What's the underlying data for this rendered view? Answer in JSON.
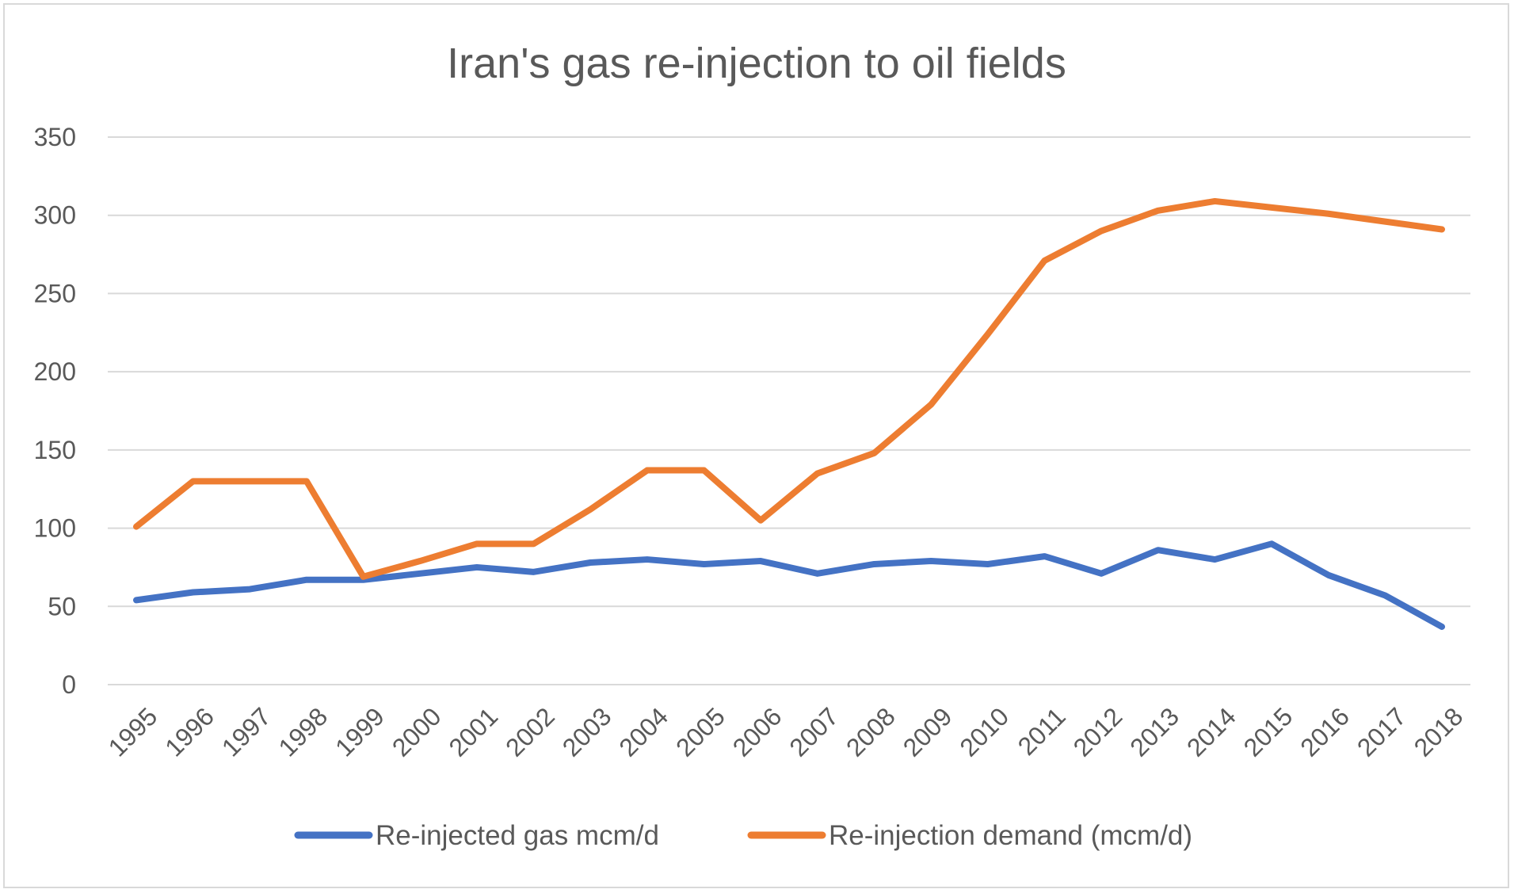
{
  "chart_data": {
    "type": "line",
    "title": "Iran's gas re-injection to oil fields",
    "xlabel": "",
    "ylabel": "",
    "categories": [
      "1995",
      "1996",
      "1997",
      "1998",
      "1999",
      "2000",
      "2001",
      "2002",
      "2003",
      "2004",
      "2005",
      "2006",
      "2007",
      "2008",
      "2009",
      "2010",
      "2011",
      "2012",
      "2013",
      "2014",
      "2015",
      "2016",
      "2017",
      "2018"
    ],
    "ylim": [
      0,
      350
    ],
    "yticks": [
      0,
      50,
      100,
      150,
      200,
      250,
      300,
      350
    ],
    "grid": true,
    "legend_position": "bottom",
    "series": [
      {
        "name": "Re-injected gas mcm/d",
        "color": "#4472C4",
        "values": [
          54,
          59,
          61,
          67,
          67,
          71,
          75,
          72,
          78,
          80,
          77,
          79,
          71,
          77,
          79,
          77,
          82,
          71,
          86,
          80,
          90,
          70,
          57,
          37
        ]
      },
      {
        "name": "Re-injection demand (mcm/d)",
        "color": "#ED7D31",
        "values": [
          101,
          130,
          130,
          130,
          69,
          79,
          90,
          90,
          112,
          137,
          137,
          105,
          135,
          148,
          179,
          224,
          271,
          290,
          303,
          309,
          305,
          301,
          296,
          291
        ]
      }
    ]
  }
}
